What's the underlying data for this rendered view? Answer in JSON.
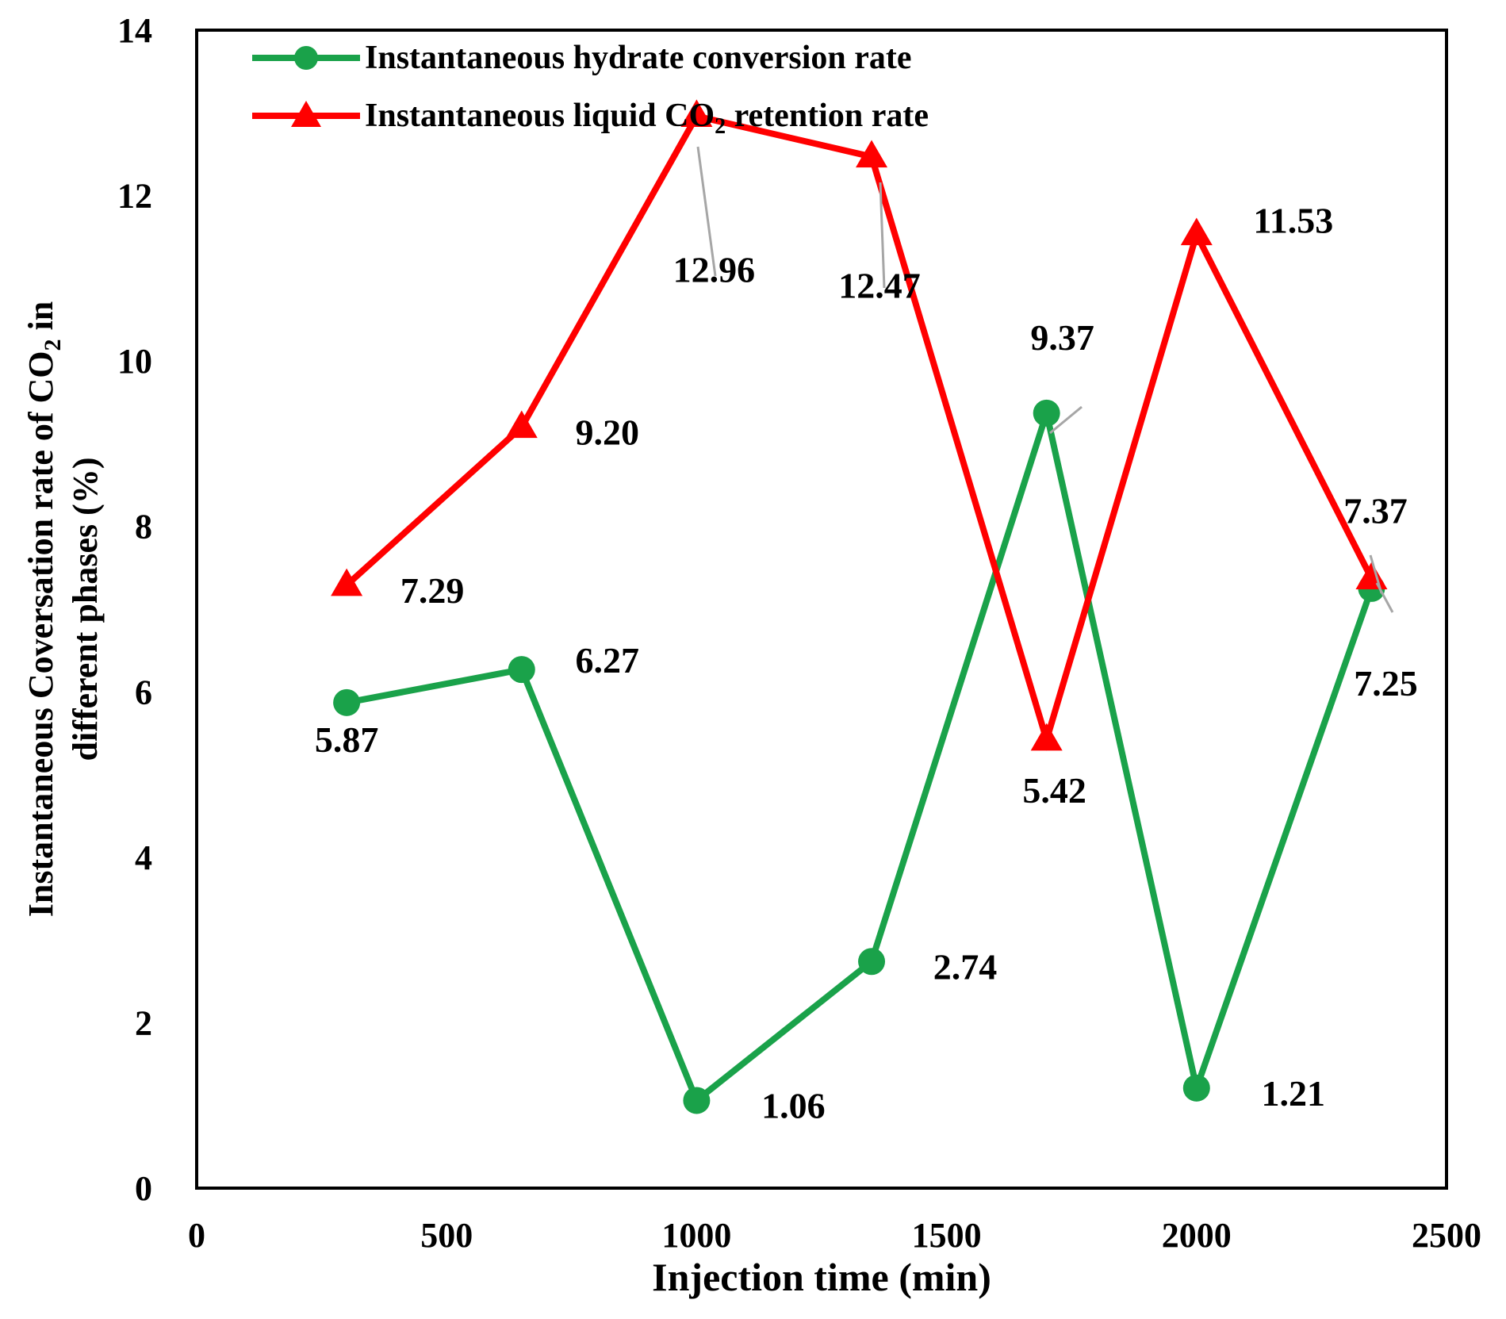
{
  "chart_data": {
    "type": "line",
    "xlabel": "Injection time (min)",
    "ylabel": {
      "line1_prefix": "Instantaneous Coversation rate of CO",
      "line1_sub": "2",
      "line1_suffix": " in",
      "line2": "different phases (%)"
    },
    "xlim": [
      0,
      2500
    ],
    "ylim": [
      0,
      14
    ],
    "xticks": [
      "0",
      "500",
      "1000",
      "1500",
      "2000",
      "2500"
    ],
    "yticks": [
      "0",
      "2",
      "4",
      "6",
      "8",
      "10",
      "12",
      "14"
    ],
    "grid": false,
    "legend_position": "top-left",
    "x": [
      300,
      650,
      1000,
      1350,
      1700,
      2000,
      2350
    ],
    "series": [
      {
        "name": "Instantaneous hydrate conversion rate",
        "color": "#1aa24a",
        "marker": "circle",
        "values": [
          5.87,
          6.27,
          1.06,
          2.74,
          9.37,
          1.21,
          7.25
        ],
        "labels": [
          "5.87",
          "6.27",
          "1.06",
          "2.74",
          "9.37",
          "1.21",
          "7.25"
        ]
      },
      {
        "name": "Instantaneous liquid CO2 retention rate",
        "name_parts": {
          "prefix": "Instantaneous liquid ",
          "chem": "CO",
          "sub": "2",
          "suffix": " retention rate"
        },
        "color": "#ff0000",
        "marker": "triangle",
        "values": [
          7.29,
          9.2,
          12.96,
          12.47,
          5.42,
          11.53,
          7.37
        ],
        "labels": [
          "7.29",
          "9.20",
          "12.96",
          "12.47",
          "5.42",
          "11.53",
          "7.37"
        ]
      }
    ]
  }
}
